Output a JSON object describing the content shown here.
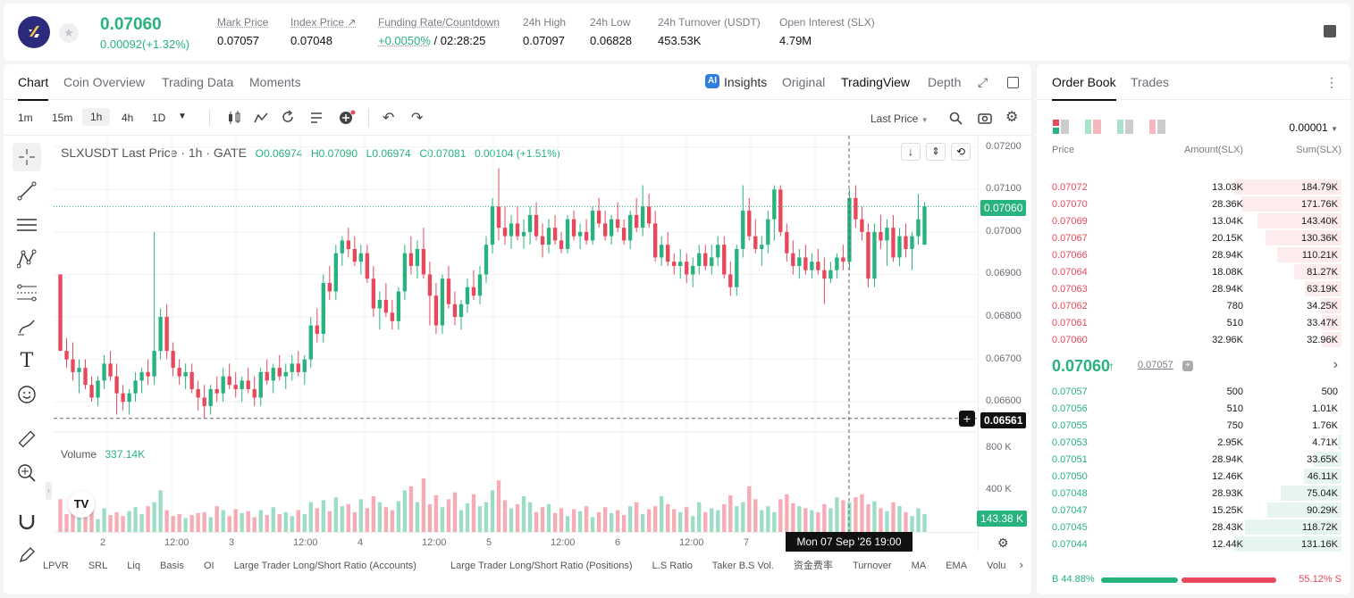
{
  "header": {
    "last_price": "0.07060",
    "change": "0.00092(+1.32%)",
    "stats": [
      {
        "label": "Mark Price",
        "value": "0.07057"
      },
      {
        "label": "Index Price ↗",
        "value": "0.07048"
      },
      {
        "label": "Funding Rate/Countdown",
        "value_green": "+0.0050%",
        "value": "/ 02:28:25"
      },
      {
        "label": "24h High",
        "value": "0.07097"
      },
      {
        "label": "24h Low",
        "value": "0.06828"
      },
      {
        "label": "24h Turnover (USDT)",
        "value": "453.53K"
      },
      {
        "label": "Open Interest (SLX)",
        "value": "4.79M"
      }
    ]
  },
  "chart_tabs": {
    "left": [
      "Chart",
      "Coin Overview",
      "Trading Data",
      "Moments"
    ],
    "right": [
      "Insights",
      "Original",
      "TradingView",
      "Depth"
    ]
  },
  "toolbar": {
    "timeframes": [
      "1m",
      "15m",
      "1h",
      "4h",
      "1D"
    ],
    "price_mode": "Last Price"
  },
  "chart": {
    "symbol_line": "SLXUSDT Last Price · 1h · GATE",
    "o": "O0.06974",
    "h": "H0.07090",
    "l": "L0.06974",
    "c": "C0.07081",
    "d": "0.00104 (+1.51%)",
    "volume_label": "Volume",
    "volume_value": "337.14K",
    "last_price_box": "0.07060",
    "cursor_price_box": "0.06561",
    "volume_box": "143.38 K",
    "crosshair_time": "Mon 07 Sep '26  19:00",
    "price_ticks": [
      "0.07200",
      "0.07100",
      "0.07000",
      "0.06900",
      "0.06800",
      "0.06700",
      "0.06600"
    ],
    "vol_ticks": [
      "800 K",
      "400 K"
    ],
    "time_ticks": [
      "2",
      "12:00",
      "3",
      "12:00",
      "4",
      "12:00",
      "5",
      "12:00",
      "6",
      "12:00",
      "7",
      "12:00"
    ],
    "indicators": [
      "LPVR",
      "SRL",
      "Liq",
      "Basis",
      "OI",
      "Large Trader Long/Short Ratio (Accounts)",
      "Large Trader Long/Short Ratio (Positions)",
      "L.S Ratio",
      "Taker B.S Vol.",
      "资金费率",
      "Turnover",
      "MA",
      "EMA",
      "Volu"
    ]
  },
  "chart_data": {
    "type": "candlestick",
    "xlabel": "",
    "ylabel": "",
    "ylim": [
      0.0655,
      0.0721
    ],
    "up_color": "#27b37e",
    "down_color": "#e8485b",
    "ohlc": [
      [
        0.069,
        0.069,
        0.0672,
        0.0672
      ],
      [
        0.0672,
        0.0675,
        0.0668,
        0.067
      ],
      [
        0.067,
        0.0674,
        0.0665,
        0.0667
      ],
      [
        0.0667,
        0.067,
        0.0662,
        0.0668
      ],
      [
        0.0668,
        0.067,
        0.0663,
        0.0664
      ],
      [
        0.0664,
        0.0666,
        0.066,
        0.0661
      ],
      [
        0.0661,
        0.0666,
        0.0659,
        0.0665
      ],
      [
        0.0665,
        0.0671,
        0.0663,
        0.0669
      ],
      [
        0.0669,
        0.0672,
        0.0665,
        0.0666
      ],
      [
        0.0666,
        0.0669,
        0.0657,
        0.0662
      ],
      [
        0.0662,
        0.0664,
        0.0658,
        0.066
      ],
      [
        0.066,
        0.0663,
        0.0657,
        0.0662
      ],
      [
        0.0662,
        0.0667,
        0.066,
        0.0665
      ],
      [
        0.0665,
        0.0668,
        0.0662,
        0.0667
      ],
      [
        0.0667,
        0.067,
        0.0664,
        0.0666
      ],
      [
        0.0666,
        0.07,
        0.0664,
        0.0672
      ],
      [
        0.0672,
        0.0682,
        0.067,
        0.068
      ],
      [
        0.068,
        0.0683,
        0.067,
        0.0672
      ],
      [
        0.0672,
        0.0674,
        0.0666,
        0.0668
      ],
      [
        0.0668,
        0.067,
        0.0664,
        0.0666
      ],
      [
        0.0666,
        0.0669,
        0.0663,
        0.0667
      ],
      [
        0.0667,
        0.0669,
        0.0662,
        0.0663
      ],
      [
        0.0663,
        0.0665,
        0.0658,
        0.0661
      ],
      [
        0.0661,
        0.0664,
        0.0656,
        0.0659
      ],
      [
        0.0659,
        0.0664,
        0.0657,
        0.0663
      ],
      [
        0.0663,
        0.0666,
        0.066,
        0.0662
      ],
      [
        0.0662,
        0.0668,
        0.066,
        0.0666
      ],
      [
        0.0666,
        0.0669,
        0.0663,
        0.0664
      ],
      [
        0.0664,
        0.0667,
        0.0661,
        0.0663
      ],
      [
        0.0663,
        0.0666,
        0.066,
        0.0665
      ],
      [
        0.0665,
        0.0668,
        0.0662,
        0.0663
      ],
      [
        0.0663,
        0.0666,
        0.0659,
        0.0661
      ],
      [
        0.0661,
        0.0668,
        0.0659,
        0.0667
      ],
      [
        0.0667,
        0.067,
        0.0664,
        0.0665
      ],
      [
        0.0665,
        0.0669,
        0.0662,
        0.0668
      ],
      [
        0.0668,
        0.0671,
        0.0665,
        0.0666
      ],
      [
        0.0666,
        0.0669,
        0.0663,
        0.0667
      ],
      [
        0.0667,
        0.0671,
        0.0665,
        0.0669
      ],
      [
        0.0669,
        0.0672,
        0.0666,
        0.0667
      ],
      [
        0.0667,
        0.0671,
        0.0664,
        0.067
      ],
      [
        0.067,
        0.068,
        0.0668,
        0.0678
      ],
      [
        0.0678,
        0.0682,
        0.0674,
        0.0676
      ],
      [
        0.0676,
        0.069,
        0.0674,
        0.0688
      ],
      [
        0.0688,
        0.0692,
        0.0684,
        0.0686
      ],
      [
        0.0686,
        0.0697,
        0.0684,
        0.0695
      ],
      [
        0.0695,
        0.0699,
        0.0692,
        0.0698
      ],
      [
        0.0698,
        0.0701,
        0.0694,
        0.0696
      ],
      [
        0.0696,
        0.0699,
        0.0692,
        0.0693
      ],
      [
        0.0693,
        0.0697,
        0.069,
        0.0695
      ],
      [
        0.0695,
        0.0697,
        0.0688,
        0.0689
      ],
      [
        0.0689,
        0.0692,
        0.068,
        0.0682
      ],
      [
        0.0682,
        0.0686,
        0.0677,
        0.0684
      ],
      [
        0.0684,
        0.0688,
        0.068,
        0.0681
      ],
      [
        0.0681,
        0.0684,
        0.0677,
        0.0679
      ],
      [
        0.0679,
        0.0687,
        0.0677,
        0.0686
      ],
      [
        0.0686,
        0.0697,
        0.0684,
        0.0695
      ],
      [
        0.0695,
        0.0699,
        0.069,
        0.0692
      ],
      [
        0.0692,
        0.0698,
        0.0689,
        0.0696
      ],
      [
        0.0696,
        0.0701,
        0.0689,
        0.069
      ],
      [
        0.069,
        0.0693,
        0.0678,
        0.0685
      ],
      [
        0.0685,
        0.0688,
        0.0676,
        0.0678
      ],
      [
        0.0678,
        0.069,
        0.0676,
        0.0689
      ],
      [
        0.0689,
        0.0692,
        0.0682,
        0.0683
      ],
      [
        0.0683,
        0.0686,
        0.0678,
        0.068
      ],
      [
        0.068,
        0.0684,
        0.0677,
        0.0683
      ],
      [
        0.0683,
        0.0689,
        0.0681,
        0.0687
      ],
      [
        0.0687,
        0.0691,
        0.0684,
        0.0685
      ],
      [
        0.0685,
        0.0692,
        0.0683,
        0.069
      ],
      [
        0.069,
        0.0699,
        0.0688,
        0.0697
      ],
      [
        0.0697,
        0.0708,
        0.0695,
        0.0706
      ],
      [
        0.0706,
        0.0715,
        0.0698,
        0.0701
      ],
      [
        0.0701,
        0.0706,
        0.0697,
        0.0699
      ],
      [
        0.0699,
        0.0704,
        0.0696,
        0.0702
      ],
      [
        0.0702,
        0.0706,
        0.0698,
        0.0699
      ],
      [
        0.0699,
        0.0703,
        0.0696,
        0.07
      ],
      [
        0.07,
        0.0706,
        0.0697,
        0.0704
      ],
      [
        0.0704,
        0.0707,
        0.0698,
        0.0699
      ],
      [
        0.0699,
        0.0702,
        0.0694,
        0.0697
      ],
      [
        0.0697,
        0.0703,
        0.0695,
        0.0701
      ],
      [
        0.0701,
        0.0704,
        0.0697,
        0.0698
      ],
      [
        0.0698,
        0.07,
        0.0695,
        0.0696
      ],
      [
        0.0696,
        0.0704,
        0.0695,
        0.0703
      ],
      [
        0.0703,
        0.0705,
        0.0698,
        0.0699
      ],
      [
        0.0699,
        0.0702,
        0.0696,
        0.07
      ],
      [
        0.07,
        0.0703,
        0.0697,
        0.0698
      ],
      [
        0.0698,
        0.0706,
        0.0697,
        0.0705
      ],
      [
        0.0705,
        0.0708,
        0.0701,
        0.0702
      ],
      [
        0.0702,
        0.0705,
        0.0698,
        0.0699
      ],
      [
        0.0699,
        0.0704,
        0.0697,
        0.0703
      ],
      [
        0.0703,
        0.0707,
        0.07,
        0.0701
      ],
      [
        0.0701,
        0.0703,
        0.0697,
        0.0698
      ],
      [
        0.0698,
        0.0705,
        0.0696,
        0.0704
      ],
      [
        0.0704,
        0.0708,
        0.07,
        0.0701
      ],
      [
        0.0701,
        0.0711,
        0.0699,
        0.0706
      ],
      [
        0.0706,
        0.0709,
        0.0701,
        0.0702
      ],
      [
        0.0702,
        0.0705,
        0.0693,
        0.0694
      ],
      [
        0.0694,
        0.0699,
        0.0692,
        0.0697
      ],
      [
        0.0697,
        0.07,
        0.0692,
        0.0693
      ],
      [
        0.0693,
        0.0695,
        0.069,
        0.0692
      ],
      [
        0.0692,
        0.0696,
        0.0689,
        0.0693
      ],
      [
        0.0693,
        0.0695,
        0.0688,
        0.069
      ],
      [
        0.069,
        0.0694,
        0.0687,
        0.0692
      ],
      [
        0.0692,
        0.0697,
        0.069,
        0.0695
      ],
      [
        0.0695,
        0.0697,
        0.0691,
        0.0692
      ],
      [
        0.0692,
        0.0697,
        0.069,
        0.0694
      ],
      [
        0.0694,
        0.0699,
        0.0692,
        0.0697
      ],
      [
        0.0697,
        0.0699,
        0.0689,
        0.069
      ],
      [
        0.069,
        0.0693,
        0.0685,
        0.0687
      ],
      [
        0.0687,
        0.0697,
        0.0685,
        0.0696
      ],
      [
        0.0696,
        0.0711,
        0.0694,
        0.0705
      ],
      [
        0.0705,
        0.0708,
        0.0698,
        0.0699
      ],
      [
        0.0699,
        0.0703,
        0.0695,
        0.0696
      ],
      [
        0.0696,
        0.0699,
        0.0692,
        0.0697
      ],
      [
        0.0697,
        0.0705,
        0.0695,
        0.0703
      ],
      [
        0.0703,
        0.0711,
        0.0698,
        0.071
      ],
      [
        0.071,
        0.0711,
        0.0699,
        0.07
      ],
      [
        0.07,
        0.0702,
        0.0693,
        0.0695
      ],
      [
        0.0695,
        0.0698,
        0.069,
        0.0692
      ],
      [
        0.0692,
        0.0696,
        0.0689,
        0.0694
      ],
      [
        0.0694,
        0.0697,
        0.069,
        0.0691
      ],
      [
        0.0691,
        0.0695,
        0.0689,
        0.0693
      ],
      [
        0.0693,
        0.0696,
        0.069,
        0.0691
      ],
      [
        0.0691,
        0.0694,
        0.0683,
        0.0689
      ],
      [
        0.0689,
        0.0693,
        0.0688,
        0.0691
      ],
      [
        0.0691,
        0.0695,
        0.0689,
        0.0694
      ],
      [
        0.0694,
        0.0697,
        0.0691,
        0.0693
      ],
      [
        0.0693,
        0.071,
        0.0691,
        0.0708
      ],
      [
        0.0708,
        0.0711,
        0.0701,
        0.0703
      ],
      [
        0.0703,
        0.0706,
        0.0698,
        0.07
      ],
      [
        0.07,
        0.0702,
        0.0687,
        0.0689
      ],
      [
        0.0689,
        0.0702,
        0.0687,
        0.07
      ],
      [
        0.07,
        0.0704,
        0.0696,
        0.0698
      ],
      [
        0.0698,
        0.0703,
        0.0692,
        0.0701
      ],
      [
        0.0701,
        0.0704,
        0.0693,
        0.0694
      ],
      [
        0.0694,
        0.0701,
        0.0692,
        0.0699
      ],
      [
        0.0699,
        0.0702,
        0.0694,
        0.0696
      ],
      [
        0.0696,
        0.07,
        0.0691,
        0.0699
      ],
      [
        0.0699,
        0.0709,
        0.0697,
        0.0703
      ],
      [
        0.0697,
        0.0707,
        0.0697,
        0.0706
      ]
    ],
    "volume": [
      330,
      180,
      260,
      300,
      150,
      220,
      130,
      240,
      170,
      200,
      160,
      210,
      250,
      180,
      260,
      300,
      420,
      220,
      160,
      180,
      140,
      170,
      190,
      200,
      150,
      260,
      220,
      160,
      230,
      190,
      210,
      150,
      220,
      170,
      250,
      180,
      200,
      160,
      220,
      180,
      300,
      240,
      320,
      210,
      350,
      260,
      280,
      200,
      330,
      240,
      360,
      300,
      250,
      220,
      310,
      420,
      460,
      300,
      540,
      280,
      370,
      250,
      330,
      400,
      220,
      290,
      380,
      260,
      300,
      420,
      520,
      320,
      240,
      280,
      360,
      300,
      200,
      250,
      280,
      190,
      240,
      160,
      230,
      210,
      260,
      150,
      200,
      250,
      190,
      220,
      170,
      260,
      300,
      180,
      230,
      260,
      360,
      280,
      230,
      200,
      250,
      160,
      300,
      200,
      240,
      220,
      280,
      370,
      260,
      300,
      460,
      330,
      220,
      260,
      200,
      330,
      380,
      290,
      260,
      240,
      220,
      200,
      280,
      240,
      350,
      320,
      300,
      350,
      380,
      280,
      310,
      240,
      210,
      300,
      260,
      200,
      160,
      240,
      180,
      200,
      420,
      140
    ]
  },
  "order_book": {
    "tabs": [
      "Order Book",
      "Trades"
    ],
    "precision": "0.00001",
    "columns": [
      "Price",
      "Amount(SLX)",
      "Sum(SLX)"
    ],
    "asks": [
      {
        "price": "0.07072",
        "amount": "13.03K",
        "sum": "184.79K",
        "depth": 1.0
      },
      {
        "price": "0.07070",
        "amount": "28.36K",
        "sum": "171.76K",
        "depth": 0.93
      },
      {
        "price": "0.07069",
        "amount": "13.04K",
        "sum": "143.40K",
        "depth": 0.78
      },
      {
        "price": "0.07067",
        "amount": "20.15K",
        "sum": "130.36K",
        "depth": 0.71
      },
      {
        "price": "0.07066",
        "amount": "28.94K",
        "sum": "110.21K",
        "depth": 0.6
      },
      {
        "price": "0.07064",
        "amount": "18.08K",
        "sum": "81.27K",
        "depth": 0.44
      },
      {
        "price": "0.07063",
        "amount": "28.94K",
        "sum": "63.19K",
        "depth": 0.34
      },
      {
        "price": "0.07062",
        "amount": "780",
        "sum": "34.25K",
        "depth": 0.19
      },
      {
        "price": "0.07061",
        "amount": "510",
        "sum": "33.47K",
        "depth": 0.18
      },
      {
        "price": "0.07060",
        "amount": "32.96K",
        "sum": "32.96K",
        "depth": 0.18
      }
    ],
    "mid_price": "0.07060",
    "mid_mark": "0.07057",
    "bids": [
      {
        "price": "0.07057",
        "amount": "500",
        "sum": "500",
        "depth": 0.0
      },
      {
        "price": "0.07056",
        "amount": "510",
        "sum": "1.01K",
        "depth": 0.01
      },
      {
        "price": "0.07055",
        "amount": "750",
        "sum": "1.76K",
        "depth": 0.01
      },
      {
        "price": "0.07053",
        "amount": "2.95K",
        "sum": "4.71K",
        "depth": 0.03
      },
      {
        "price": "0.07051",
        "amount": "28.94K",
        "sum": "33.65K",
        "depth": 0.26
      },
      {
        "price": "0.07050",
        "amount": "12.46K",
        "sum": "46.11K",
        "depth": 0.35
      },
      {
        "price": "0.07048",
        "amount": "28.93K",
        "sum": "75.04K",
        "depth": 0.57
      },
      {
        "price": "0.07047",
        "amount": "15.25K",
        "sum": "90.29K",
        "depth": 0.69
      },
      {
        "price": "0.07045",
        "amount": "28.43K",
        "sum": "118.72K",
        "depth": 0.9
      },
      {
        "price": "0.07044",
        "amount": "12.44K",
        "sum": "131.16K",
        "depth": 1.0
      }
    ],
    "buy_ratio": "B 44.88%",
    "sell_ratio": "55.12% S",
    "buy_fraction": 0.4488
  }
}
